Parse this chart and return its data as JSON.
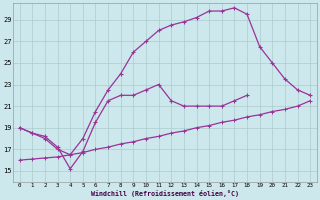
{
  "background_color": "#cce8ec",
  "grid_color": "#aacccc",
  "line_color": "#993399",
  "marker_color": "#993399",
  "xlabel": "Windchill (Refroidissement éolien,°C)",
  "xlim": [
    -0.5,
    23.5
  ],
  "ylim": [
    14,
    30.5
  ],
  "yticks": [
    15,
    17,
    19,
    21,
    23,
    25,
    27,
    29
  ],
  "xticks": [
    0,
    1,
    2,
    3,
    4,
    5,
    6,
    7,
    8,
    9,
    10,
    11,
    12,
    13,
    14,
    15,
    16,
    17,
    18,
    19,
    20,
    21,
    22,
    23
  ],
  "line1_x": [
    0,
    1,
    2,
    3,
    4,
    5,
    6,
    7,
    8,
    9,
    10,
    11,
    12,
    13,
    14,
    15,
    16,
    17,
    18
  ],
  "line1_y": [
    19,
    18.5,
    18.2,
    17.2,
    15.2,
    16.8,
    19.5,
    21.5,
    22.0,
    22.0,
    22.5,
    23.0,
    21.5,
    21.0,
    21.0,
    21.0,
    21.0,
    21.5,
    22.0
  ],
  "line2_x": [
    0,
    1,
    2,
    3,
    4,
    5,
    6,
    7,
    8,
    9,
    10,
    11,
    12,
    13,
    14,
    15,
    16,
    17,
    18,
    19,
    20,
    21,
    22,
    23
  ],
  "line2_y": [
    19.0,
    18.5,
    18.0,
    17.0,
    16.5,
    18.0,
    20.5,
    22.5,
    24.0,
    26.0,
    27.0,
    28.0,
    28.5,
    28.8,
    29.2,
    29.8,
    29.8,
    30.1,
    29.5,
    26.5,
    25.0,
    23.5,
    22.5,
    22.0
  ],
  "line3_x": [
    0,
    1,
    2,
    3,
    4,
    5,
    6,
    7,
    8,
    9,
    10,
    11,
    12,
    13,
    14,
    15,
    16,
    17,
    18,
    19,
    20,
    21,
    22,
    23
  ],
  "line3_y": [
    16.0,
    16.1,
    16.2,
    16.3,
    16.5,
    16.7,
    17.0,
    17.2,
    17.5,
    17.7,
    18.0,
    18.2,
    18.5,
    18.7,
    19.0,
    19.2,
    19.5,
    19.7,
    20.0,
    20.2,
    20.5,
    20.7,
    21.0,
    21.5
  ]
}
